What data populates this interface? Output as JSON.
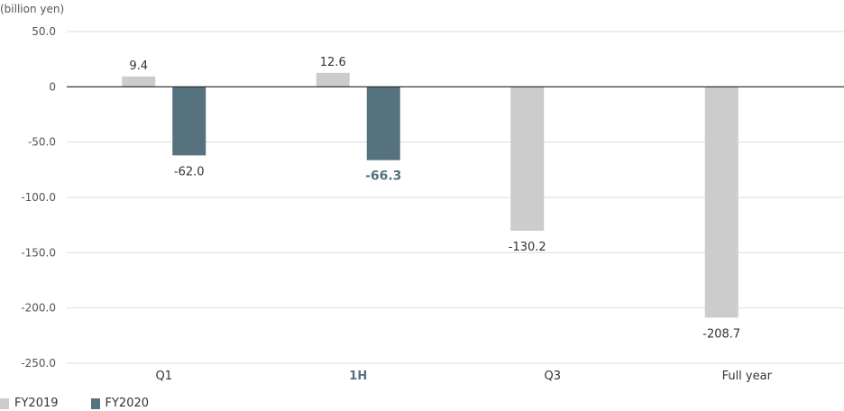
{
  "chart_data": {
    "type": "bar",
    "unit_label": "(billion yen)",
    "categories": [
      "Q1",
      "1H",
      "Q3",
      "Full year"
    ],
    "highlight_category": "1H",
    "series": [
      {
        "name": "FY2019",
        "color": "#cccccc",
        "values": [
          9.4,
          12.6,
          -130.2,
          -208.7
        ],
        "labels": [
          "9.4",
          "12.6",
          "-130.2",
          "-208.7"
        ]
      },
      {
        "name": "FY2020",
        "color": "#56727f",
        "values": [
          -62.0,
          -66.3,
          null,
          null
        ],
        "labels": [
          "-62.0",
          "-66.3",
          null,
          null
        ]
      }
    ],
    "y_ticks": [
      50,
      0,
      -50,
      -100,
      -150,
      -200,
      -250
    ],
    "y_tick_labels": [
      "50.0",
      "0",
      "-50.0",
      "-100.0",
      "-150.0",
      "-200.0",
      "-250.0"
    ],
    "ylim": [
      -250,
      50
    ],
    "grid": true,
    "legend_position": "bottom-left",
    "colors": {
      "highlight_text": "#56727f",
      "grid": "#dddddd",
      "zero_line": "#222222"
    }
  }
}
